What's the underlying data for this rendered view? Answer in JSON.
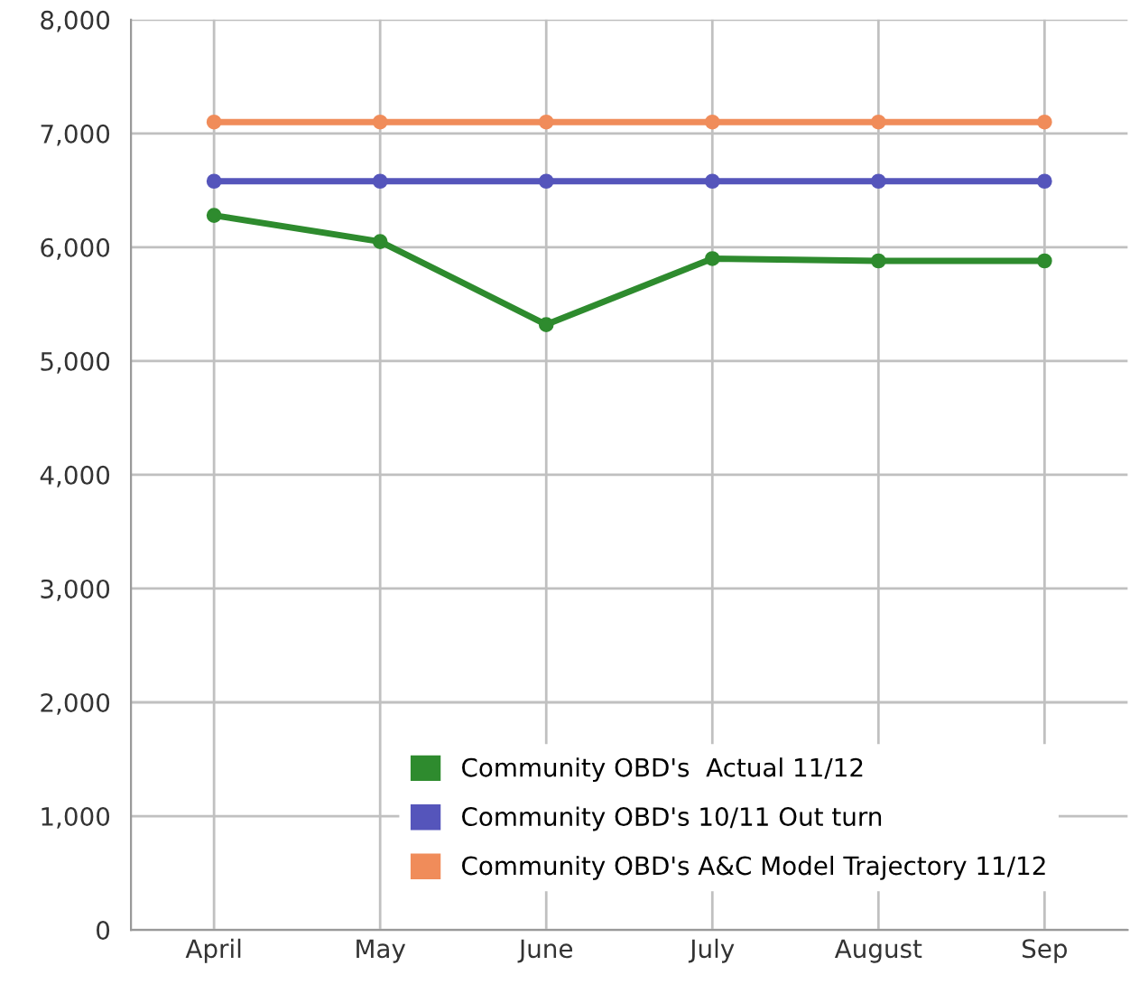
{
  "chart_data": {
    "type": "line",
    "categories": [
      "April",
      "May",
      "June",
      "July",
      "August",
      "Sep"
    ],
    "series": [
      {
        "name": "Community OBD's  Actual 11/12",
        "color": "#2e8b2e",
        "values": [
          6280,
          6050,
          5320,
          5900,
          5880,
          5880
        ]
      },
      {
        "name": "Community OBD's 10/11 Out turn",
        "color": "#5555bb",
        "values": [
          6580,
          6580,
          6580,
          6580,
          6580,
          6580
        ]
      },
      {
        "name": "Community OBD's A&C Model Trajectory 11/12",
        "color": "#f08c5a",
        "values": [
          7100,
          7100,
          7100,
          7100,
          7100,
          7100
        ]
      }
    ],
    "ylim": [
      0,
      8000
    ],
    "yticks": [
      {
        "value": 0,
        "label": "0"
      },
      {
        "value": 1000,
        "label": "1,000"
      },
      {
        "value": 2000,
        "label": "2,000"
      },
      {
        "value": 3000,
        "label": "3,000"
      },
      {
        "value": 4000,
        "label": "4,000"
      },
      {
        "value": 5000,
        "label": "5,000"
      },
      {
        "value": 6000,
        "label": "6,000"
      },
      {
        "value": 7000,
        "label": "7,000"
      },
      {
        "value": 8000,
        "label": "8,000"
      }
    ],
    "grid": true,
    "legend": "bottom",
    "marker": "circle",
    "line_style": "solid"
  }
}
